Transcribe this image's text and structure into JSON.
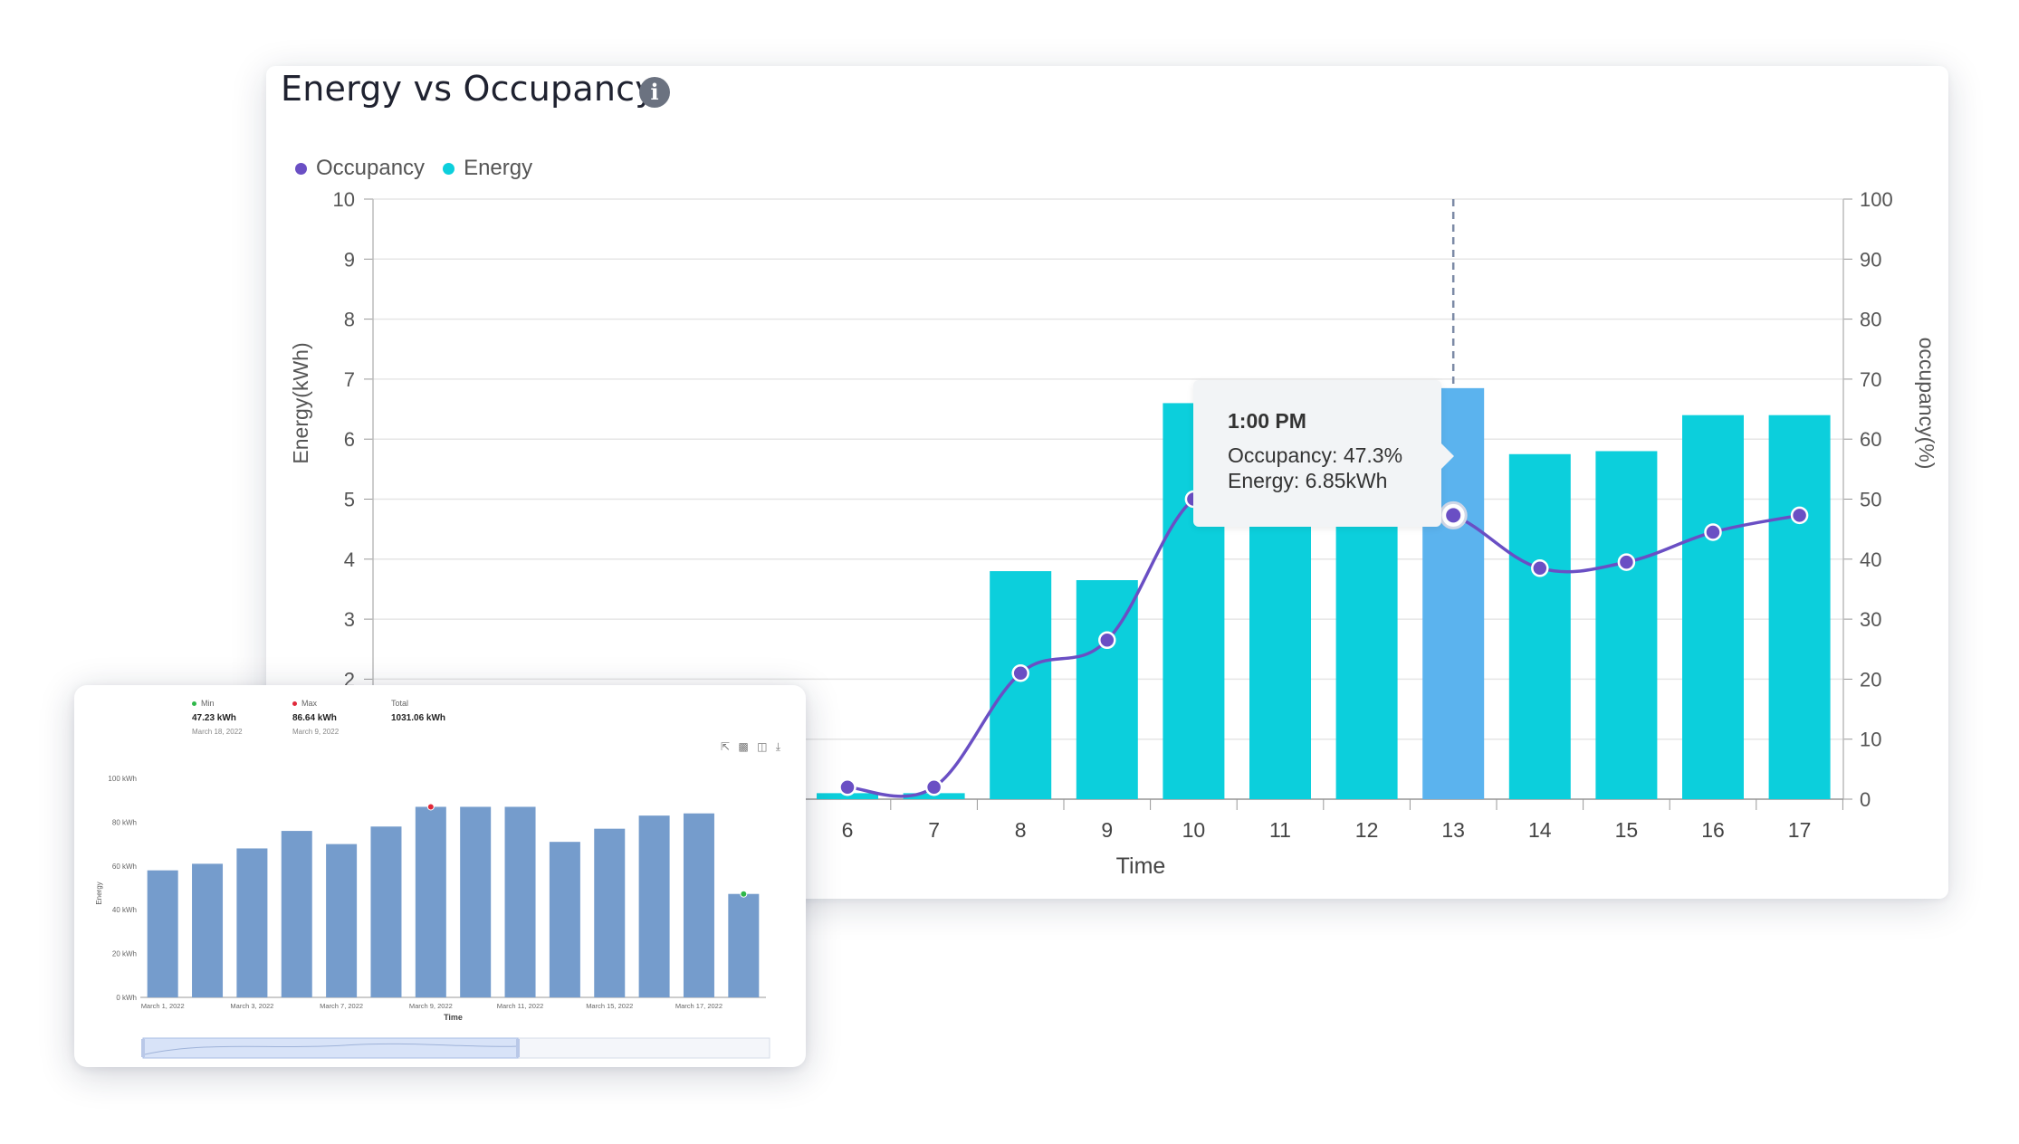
{
  "header": {
    "title": "Energy vs Occupancy",
    "info_icon": "info-icon"
  },
  "legend": [
    {
      "name": "Occupancy",
      "color": "#6a4fc4"
    },
    {
      "name": "Energy",
      "color": "#0ccfdc"
    }
  ],
  "tooltip": {
    "title": "1:00 PM",
    "occupancy": "Occupancy: 47.3%",
    "energy": "Energy: 6.85kWh"
  },
  "chart_data": [
    {
      "type": "bar",
      "title": "Energy vs Occupancy",
      "xlabel": "Time",
      "ylabel": "Energy(kWh)",
      "y2label": "occupancy(%)",
      "ylim": [
        0,
        10
      ],
      "y2lim": [
        0,
        100
      ],
      "yticks": [
        0,
        1,
        2,
        3,
        4,
        5,
        6,
        7,
        8,
        9,
        10
      ],
      "y2ticks": [
        0,
        10,
        20,
        30,
        40,
        50,
        60,
        70,
        80,
        90,
        100
      ],
      "categories": [
        6,
        7,
        8,
        9,
        10,
        11,
        12,
        13,
        14,
        15,
        16,
        17
      ],
      "grid": true,
      "legend_position": "top-left",
      "highlight_category": 13,
      "series": [
        {
          "name": "Energy",
          "axis": "left",
          "type": "bar",
          "color": "#0ccfdc",
          "highlight_color": "#5bb3ee",
          "values": [
            0.1,
            0.1,
            3.8,
            3.65,
            6.6,
            5.6,
            5.6,
            6.85,
            5.75,
            5.8,
            6.4,
            6.4
          ]
        },
        {
          "name": "Occupancy",
          "axis": "right",
          "type": "line",
          "color": "#6a4fc4",
          "values": [
            2,
            2,
            21,
            26.5,
            50,
            50,
            50,
            47.3,
            38.5,
            39.5,
            44.5,
            47.3
          ]
        }
      ]
    },
    {
      "type": "bar",
      "xlabel": "Time",
      "ylabel": "Energy",
      "ylim": [
        0,
        100
      ],
      "yticks": [
        "0 kWh",
        "20 kWh",
        "40 kWh",
        "60 kWh",
        "80 kWh",
        "100 kWh"
      ],
      "x_tick_labels": [
        "March 1, 2022",
        "March 3, 2022",
        "March 7, 2022",
        "March 9, 2022",
        "March 11, 2022",
        "March 15, 2022",
        "March 17, 2022"
      ],
      "color": "#759ccc",
      "values": [
        58,
        61,
        68,
        76,
        70,
        78,
        87,
        87,
        87,
        71,
        77,
        83,
        84,
        47.23
      ],
      "min_index": 13,
      "max_index": 6
    }
  ],
  "mini": {
    "stats": {
      "min_label": "Min",
      "min_value": "47.23 kWh",
      "min_date": "March 18, 2022",
      "max_label": "Max",
      "max_value": "86.64 kWh",
      "max_date": "March 9, 2022",
      "total_label": "Total",
      "total_value": "1031.06 kWh"
    },
    "colors": {
      "min": "#2fb84a",
      "max": "#e0293a"
    },
    "tools": [
      "zoom-icon",
      "bar-chart-icon",
      "data-view-icon",
      "download-icon"
    ]
  }
}
